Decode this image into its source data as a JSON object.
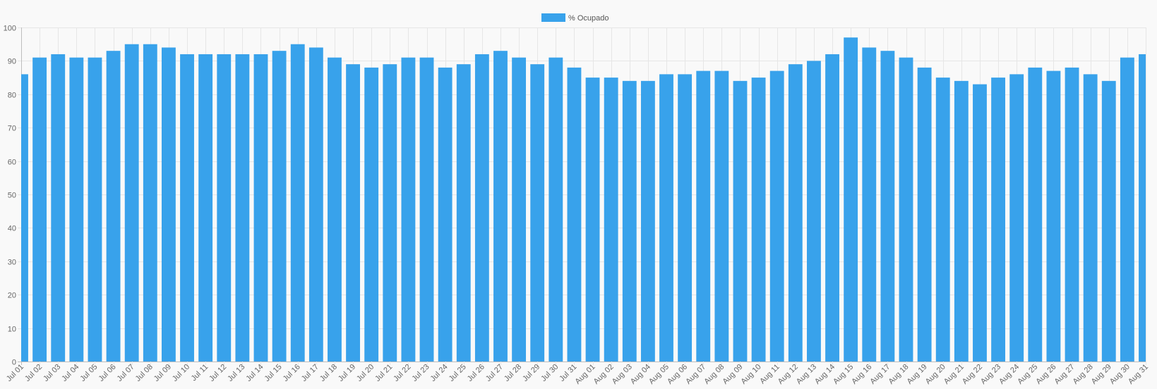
{
  "chart_data": {
    "type": "bar",
    "legend": {
      "label": "% Ocupado",
      "position": "top-center"
    },
    "bar_color": "#38a2eb",
    "grid": true,
    "ylim": [
      0,
      100
    ],
    "yticks": [
      0,
      10,
      20,
      30,
      40,
      50,
      60,
      70,
      80,
      90,
      100
    ],
    "categories": [
      "Jul 01",
      "Jul 02",
      "Jul 03",
      "Jul 04",
      "Jul 05",
      "Jul 06",
      "Jul 07",
      "Jul 08",
      "Jul 09",
      "Jul 10",
      "Jul 11",
      "Jul 12",
      "Jul 13",
      "Jul 14",
      "Jul 15",
      "Jul 16",
      "Jul 17",
      "Jul 18",
      "Jul 19",
      "Jul 20",
      "Jul 21",
      "Jul 22",
      "Jul 23",
      "Jul 24",
      "Jul 25",
      "Jul 26",
      "Jul 27",
      "Jul 28",
      "Jul 29",
      "Jul 30",
      "Jul 31",
      "Aug 01",
      "Aug 02",
      "Aug 03",
      "Aug 04",
      "Aug 05",
      "Aug 06",
      "Aug 07",
      "Aug 08",
      "Aug 09",
      "Aug 10",
      "Aug 11",
      "Aug 12",
      "Aug 13",
      "Aug 14",
      "Aug 15",
      "Aug 16",
      "Aug 17",
      "Aug 18",
      "Aug 19",
      "Aug 20",
      "Aug 21",
      "Aug 22",
      "Aug 23",
      "Aug 24",
      "Aug 25",
      "Aug 26",
      "Aug 27",
      "Aug 28",
      "Aug 29",
      "Aug 30",
      "Aug 31"
    ],
    "series": [
      {
        "name": "% Ocupado",
        "values": [
          86,
          91,
          92,
          91,
          91,
          93,
          95,
          95,
          94,
          92,
          92,
          92,
          92,
          92,
          93,
          95,
          94,
          91,
          89,
          88,
          89,
          91,
          91,
          88,
          89,
          92,
          93,
          91,
          89,
          91,
          88,
          85,
          85,
          84,
          84,
          86,
          86,
          87,
          87,
          84,
          85,
          87,
          89,
          90,
          92,
          97,
          94,
          93,
          91,
          88,
          85,
          84,
          83,
          85,
          86,
          88,
          87,
          88,
          86,
          84,
          91,
          92
        ]
      }
    ]
  }
}
